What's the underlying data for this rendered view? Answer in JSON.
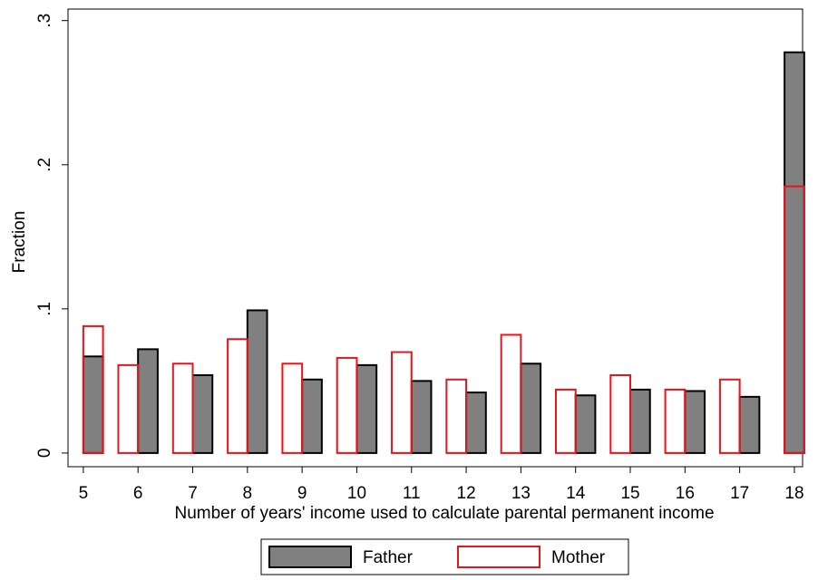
{
  "chart_data": {
    "type": "bar",
    "x_label": "Number of years' income used to calculate parental permanent income",
    "y_label": "Fraction",
    "x": [
      5,
      6,
      7,
      8,
      9,
      10,
      11,
      12,
      13,
      14,
      15,
      16,
      17,
      18
    ],
    "series": [
      {
        "name": "Father",
        "color": "#808080",
        "values": [
          0.067,
          0.072,
          0.054,
          0.099,
          0.051,
          0.061,
          0.05,
          0.042,
          0.062,
          0.04,
          0.044,
          0.043,
          0.039,
          0.278
        ]
      },
      {
        "name": "Mother",
        "color": "#e8141c",
        "values": [
          0.088,
          0.061,
          0.062,
          0.079,
          0.062,
          0.066,
          0.07,
          0.051,
          0.082,
          0.044,
          0.054,
          0.044,
          0.051,
          0.185
        ]
      }
    ],
    "xlim": [
      4.72,
      18.15
    ],
    "xticks": [
      5,
      6,
      7,
      8,
      9,
      10,
      11,
      12,
      13,
      14,
      15,
      16,
      17,
      18
    ],
    "ylim": [
      -0.0095,
      0.308
    ],
    "yticks": [
      0,
      {
        "value": 0.1,
        "label": ".1"
      },
      {
        "value": 0.2,
        "label": ".2"
      },
      {
        "value": 0.3,
        "label": ".3"
      }
    ],
    "grid": false,
    "legend": "bottom"
  }
}
